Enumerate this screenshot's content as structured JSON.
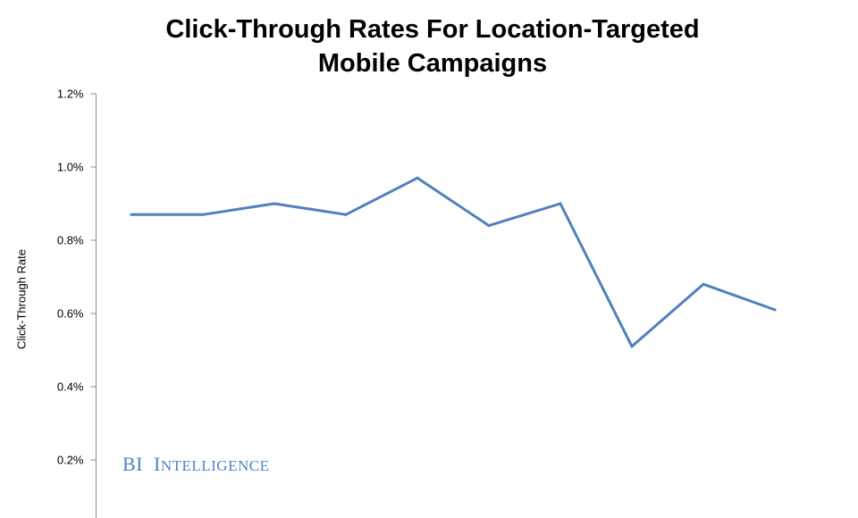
{
  "chart_data": {
    "type": "line",
    "title": "Click-Through Rates For Location-Targeted Mobile Campaigns",
    "title_lines": [
      "Click-Through Rates For Location-Targeted",
      "Mobile Campaigns"
    ],
    "ylabel": "Click-Through Rate",
    "xlabel": "",
    "y_ticks": [
      "1.2%",
      "1.0%",
      "0.8%",
      "0.6%",
      "0.4%",
      "0.2%"
    ],
    "y_tick_values": [
      1.2,
      1.0,
      0.8,
      0.6,
      0.4,
      0.2
    ],
    "ylim": [
      0,
      1.2
    ],
    "grid": false,
    "series": [
      {
        "values": [
          0.87,
          0.87,
          0.9,
          0.87,
          0.97,
          0.84,
          0.9,
          0.51,
          0.68,
          0.61
        ],
        "color": "#4f81bd"
      }
    ]
  },
  "watermark": {
    "text_bi": "BI",
    "text_intel": "Intelligence",
    "color": "#4e84c4"
  }
}
